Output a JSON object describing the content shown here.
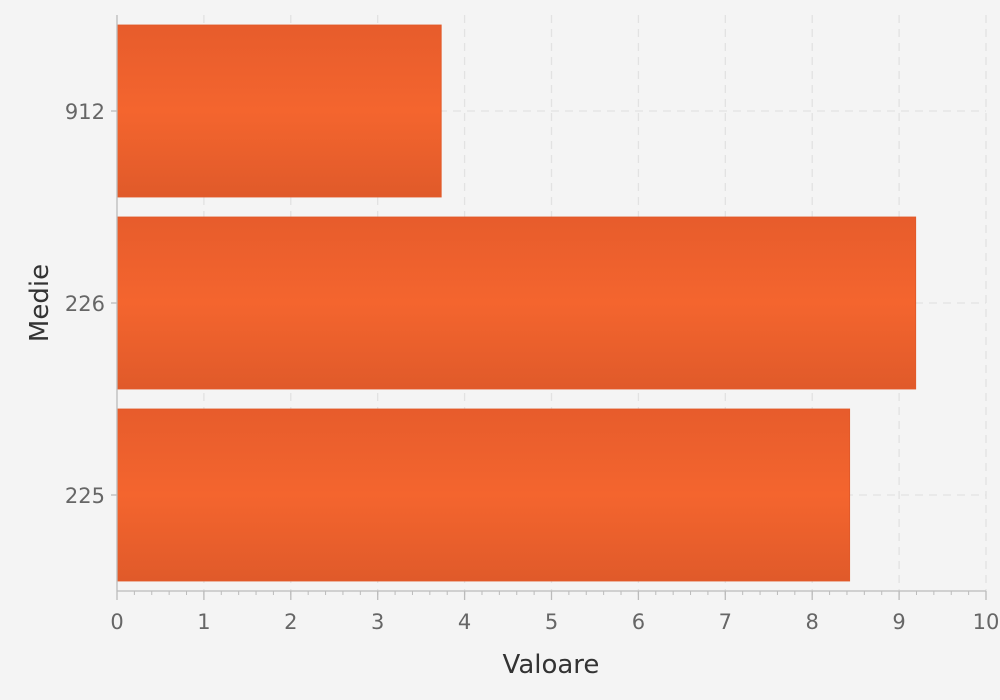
{
  "chart_data": {
    "type": "bar",
    "orientation": "horizontal",
    "categories": [
      "912",
      "226",
      "225"
    ],
    "values": [
      3.73,
      9.19,
      8.43
    ],
    "xlabel": "Valoare",
    "ylabel": "Medie",
    "xlim": [
      0,
      10
    ],
    "x_ticks": [
      "0",
      "1",
      "2",
      "3",
      "4",
      "5",
      "6",
      "7",
      "8",
      "9",
      "10"
    ],
    "grid": "dashed",
    "legend": "none",
    "colors": {
      "bar": "#f26430",
      "bar_edge": "#e25a2a",
      "background": "#f4f4f4",
      "grid": "#e2e2e2",
      "axis": "#bbbbbb"
    }
  }
}
